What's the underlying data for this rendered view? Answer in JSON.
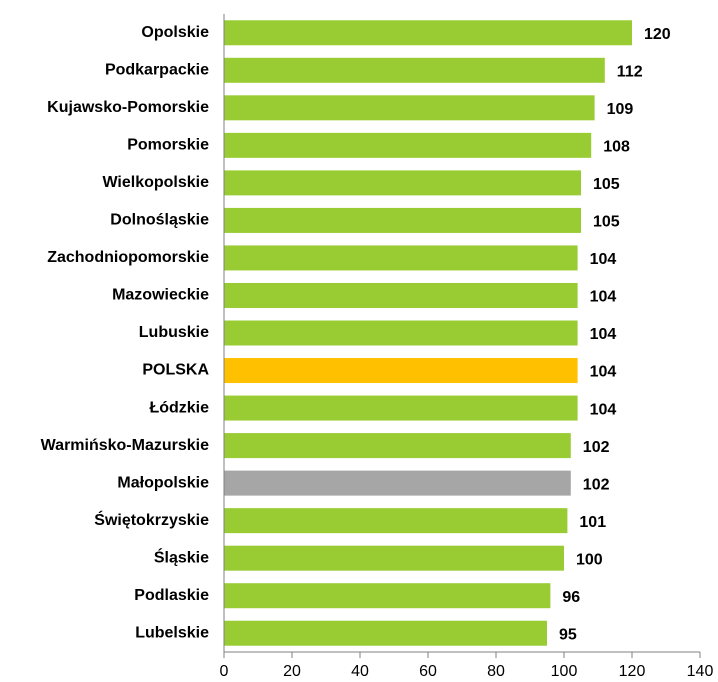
{
  "chart_data": {
    "type": "barh",
    "categories": [
      "Opolskie",
      "Podkarpackie",
      "Kujawsko-Pomorskie",
      "Pomorskie",
      "Wielkopolskie",
      "Dolnośląskie",
      "Zachodniopomorskie",
      "Mazowieckie",
      "Lubuskie",
      "POLSKA",
      "Łódzkie",
      "Warmińsko-Mazurskie",
      "Małopolskie",
      "Świętokrzyskie",
      "Śląskie",
      "Podlaskie",
      "Lubelskie"
    ],
    "values": [
      120,
      112,
      109,
      108,
      105,
      105,
      104,
      104,
      104,
      104,
      104,
      102,
      102,
      101,
      100,
      96,
      95
    ],
    "colors": [
      "#99cc33",
      "#99cc33",
      "#99cc33",
      "#99cc33",
      "#99cc33",
      "#99cc33",
      "#99cc33",
      "#99cc33",
      "#99cc33",
      "#ffc000",
      "#99cc33",
      "#99cc33",
      "#a6a6a6",
      "#99cc33",
      "#99cc33",
      "#99cc33",
      "#99cc33"
    ],
    "xlim": [
      0,
      140
    ],
    "xticks": [
      0,
      20,
      40,
      60,
      80,
      100,
      120,
      140
    ],
    "grid": false
  }
}
